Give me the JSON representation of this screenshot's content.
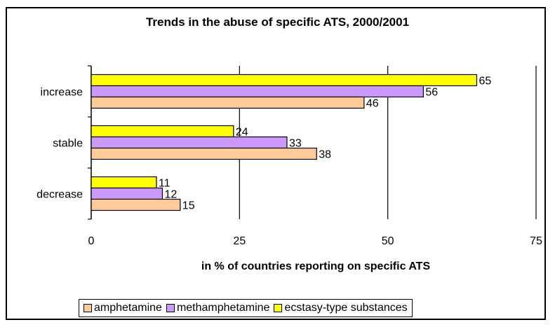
{
  "chart_data": {
    "type": "bar",
    "orientation": "horizontal",
    "title": "Trends in the abuse of specific ATS, 2000/2001",
    "xlabel": "in % of countries reporting on specific ATS",
    "ylabel": "",
    "categories": [
      "increase",
      "stable",
      "decrease"
    ],
    "series": [
      {
        "name": "amphetamine",
        "values": [
          46,
          38,
          15
        ],
        "color": "#FFCC99"
      },
      {
        "name": "methamphetamine",
        "values": [
          56,
          33,
          12
        ],
        "color": "#CC99FF"
      },
      {
        "name": "ecstasy-type substances",
        "values": [
          65,
          24,
          11
        ],
        "color": "#FFFF00"
      }
    ],
    "xlim": [
      0,
      75
    ],
    "xticks": [
      0,
      25,
      50,
      75
    ],
    "grid": true,
    "legend": "bottom"
  }
}
